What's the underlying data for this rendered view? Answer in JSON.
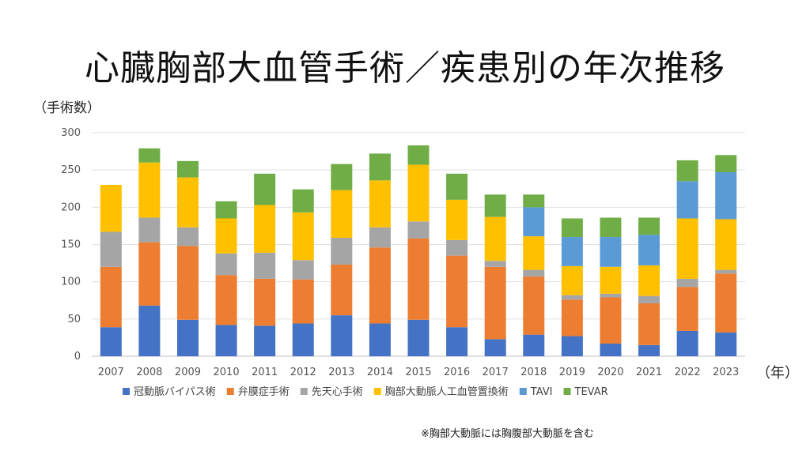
{
  "title": "心臓胸部大血管手術／疾患別の年次推移",
  "y_axis_label": "（手術数）",
  "x_axis_unit": "（年）",
  "footnote": "※胸部大動脈には胸腹部大動脈を含む",
  "chart_data": {
    "type": "bar",
    "stacked": true,
    "categories": [
      "2007",
      "2008",
      "2009",
      "2010",
      "2011",
      "2012",
      "2013",
      "2014",
      "2015",
      "2016",
      "2017",
      "2018",
      "2019",
      "2020",
      "2021",
      "2022",
      "2023"
    ],
    "ylim": [
      0,
      300
    ],
    "yticks": [
      0,
      50,
      100,
      150,
      200,
      250,
      300
    ],
    "grid": true,
    "legend": "bottom",
    "series": [
      {
        "name": "冠動脈バイパス術",
        "color": "#4472C4",
        "values": [
          39,
          68,
          49,
          42,
          41,
          44,
          55,
          44,
          49,
          39,
          23,
          29,
          27,
          17,
          15,
          34,
          32
        ]
      },
      {
        "name": "弁膜症手術",
        "color": "#ED7D31",
        "values": [
          81,
          85,
          99,
          67,
          63,
          59,
          68,
          102,
          109,
          96,
          97,
          78,
          49,
          62,
          56,
          59,
          79
        ]
      },
      {
        "name": "先天心手術",
        "color": "#A5A5A5",
        "values": [
          47,
          33,
          25,
          29,
          35,
          26,
          36,
          27,
          23,
          21,
          8,
          9,
          6,
          5,
          10,
          11,
          5
        ]
      },
      {
        "name": "胸部大動脈人工血管置換術",
        "color": "#FFC000",
        "values": [
          63,
          74,
          67,
          47,
          64,
          64,
          64,
          63,
          76,
          54,
          59,
          45,
          39,
          36,
          41,
          81,
          68
        ]
      },
      {
        "name": "TAVI",
        "color": "#5B9BD5",
        "values": [
          0,
          0,
          0,
          0,
          0,
          0,
          0,
          0,
          0,
          0,
          0,
          39,
          39,
          40,
          41,
          50,
          63
        ]
      },
      {
        "name": "TEVAR",
        "color": "#70AD47",
        "values": [
          0,
          19,
          22,
          23,
          42,
          31,
          35,
          36,
          26,
          35,
          30,
          17,
          25,
          26,
          23,
          28,
          23
        ]
      }
    ]
  }
}
